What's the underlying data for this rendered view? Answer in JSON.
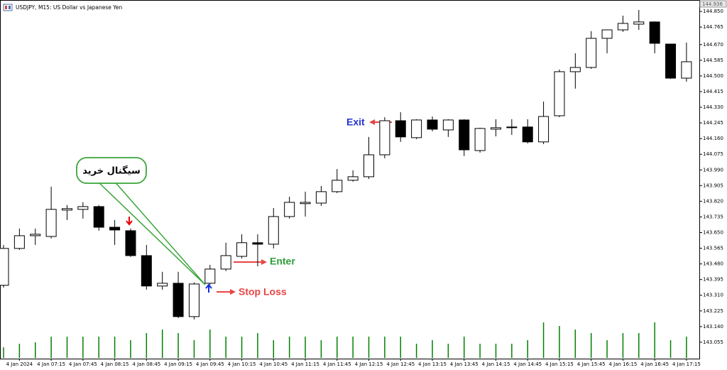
{
  "chart_data": {
    "type": "candlestick",
    "title": "USDJPY, M15:  US Dollar vs Japanese Yen",
    "price_label": "144.936",
    "categories": [
      null,
      "4 Jan 2024",
      null,
      "4 Jan 07:15",
      null,
      "4 Jan 07:45",
      null,
      "4 Jan 08:15",
      null,
      "4 Jan 08:45",
      null,
      "4 Jan 09:15",
      null,
      "4 Jan 09:45",
      null,
      "4 Jan 10:15",
      null,
      "4 Jan 10:45",
      null,
      "4 Jan 11:15",
      null,
      "4 Jan 11:45",
      null,
      "4 Jan 12:15",
      null,
      "4 Jan 12:45",
      null,
      "4 Jan 13:15",
      null,
      "4 Jan 13:45",
      null,
      "4 Jan 14:15",
      null,
      "4 Jan 14:45",
      null,
      "4 Jan 15:15",
      null,
      "4 Jan 15:45",
      null,
      "4 Jan 16:15",
      null,
      "4 Jan 16:45",
      null,
      "4 Jan 17:15"
    ],
    "open": [
      143.364,
      143.564,
      143.633,
      143.629,
      143.772,
      143.776,
      143.791,
      143.679,
      143.66,
      143.525,
      143.36,
      143.375,
      143.194,
      143.375,
      143.452,
      143.521,
      143.595,
      143.587,
      143.737,
      143.807,
      143.81,
      143.872,
      143.934,
      143.953,
      144.072,
      144.257,
      144.165,
      144.261,
      144.207,
      144.261,
      144.095,
      144.211,
      144.223,
      144.223,
      144.142,
      144.284,
      144.523,
      144.546,
      144.704,
      144.75,
      144.781,
      144.793,
      144.673,
      144.488
    ],
    "high": [
      143.583,
      143.672,
      143.672,
      143.899,
      143.799,
      143.815,
      143.799,
      143.718,
      143.672,
      143.583,
      143.437,
      143.437,
      143.379,
      143.475,
      143.595,
      143.641,
      143.641,
      143.783,
      143.845,
      143.872,
      143.903,
      143.995,
      143.988,
      144.169,
      144.276,
      144.303,
      144.265,
      144.28,
      144.265,
      144.265,
      144.219,
      144.265,
      144.265,
      144.265,
      144.361,
      144.535,
      144.623,
      144.743,
      144.75,
      144.827,
      144.858,
      144.796,
      144.673,
      144.681
    ],
    "low": [
      143.352,
      143.556,
      143.583,
      143.618,
      143.718,
      143.726,
      143.66,
      143.583,
      143.518,
      143.34,
      143.34,
      143.186,
      143.179,
      143.367,
      143.441,
      143.51,
      143.467,
      143.564,
      143.726,
      143.737,
      143.795,
      143.864,
      143.926,
      143.941,
      144.053,
      144.142,
      144.157,
      144.199,
      144.169,
      144.065,
      144.084,
      144.172,
      144.18,
      144.134,
      144.13,
      144.276,
      144.431,
      144.538,
      144.623,
      144.739,
      144.75,
      144.623,
      144.484,
      144.469
    ],
    "close": [
      143.564,
      143.633,
      143.641,
      143.776,
      143.78,
      143.791,
      143.679,
      143.664,
      143.525,
      143.36,
      143.375,
      143.194,
      143.371,
      143.452,
      143.525,
      143.595,
      143.587,
      143.737,
      143.814,
      143.814,
      143.872,
      143.934,
      143.953,
      144.072,
      144.257,
      144.169,
      144.261,
      144.211,
      144.261,
      144.099,
      144.215,
      144.219,
      144.219,
      144.142,
      144.28,
      144.523,
      144.546,
      144.704,
      144.75,
      144.785,
      144.793,
      144.677,
      144.488,
      144.577
    ],
    "volume": [
      15,
      20,
      22,
      30,
      30,
      30,
      30,
      30,
      25,
      35,
      40,
      35,
      25,
      40,
      30,
      30,
      35,
      25,
      30,
      30,
      25,
      30,
      30,
      30,
      30,
      30,
      20,
      25,
      20,
      30,
      20,
      20,
      20,
      25,
      50,
      45,
      40,
      35,
      25,
      35,
      35,
      50,
      25,
      30
    ],
    "ylim": [
      142.966,
      144.912
    ],
    "yticks": [
      {
        "value": 144.85,
        "label": "144.850"
      },
      {
        "value": 144.765,
        "label": "144.765"
      },
      {
        "value": 144.67,
        "label": "144.670"
      },
      {
        "value": 144.585,
        "label": "144.585"
      },
      {
        "value": 144.5,
        "label": "144.500"
      },
      {
        "value": 144.415,
        "label": "144.415"
      },
      {
        "value": 144.33,
        "label": "144.330"
      },
      {
        "value": 144.245,
        "label": "144.245"
      },
      {
        "value": 144.16,
        "label": "144.160"
      },
      {
        "value": 144.075,
        "label": "144.075"
      },
      {
        "value": 143.99,
        "label": "143.990"
      },
      {
        "value": 143.905,
        "label": "143.905"
      },
      {
        "value": 143.82,
        "label": "143.820"
      },
      {
        "value": 143.735,
        "label": "143.735"
      },
      {
        "value": 143.65,
        "label": "143.650"
      },
      {
        "value": 143.565,
        "label": "143.565"
      },
      {
        "value": 143.48,
        "label": "143.480"
      },
      {
        "value": 143.395,
        "label": "143.395"
      },
      {
        "value": 143.31,
        "label": "143.310"
      },
      {
        "value": 143.225,
        "label": "143.225"
      },
      {
        "value": 143.14,
        "label": "143.140"
      },
      {
        "value": 143.055,
        "label": "143.055"
      }
    ],
    "bull_color": "#ffffff",
    "bear_color": "#000000",
    "volume_color": "#008000",
    "annotations": {
      "exit": "Exit",
      "enter": "Enter",
      "stop_loss": "Stop Loss",
      "signal": "سیگنال خرید"
    }
  }
}
